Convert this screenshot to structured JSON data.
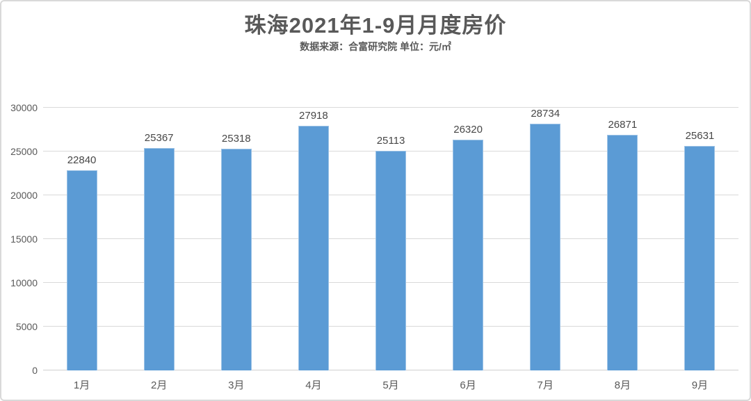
{
  "chart": {
    "title": "珠海2021年1-9月月度房价",
    "subtitle": "数据来源：合富研究院 单位：元/㎡"
  },
  "chart_data": {
    "type": "bar",
    "title": "珠海2021年1-9月月度房价",
    "subtitle": "数据来源：合富研究院 单位：元/㎡",
    "unit": "元/㎡",
    "data_source": "合富研究院",
    "categories": [
      "1月",
      "2月",
      "3月",
      "4月",
      "5月",
      "6月",
      "7月",
      "8月",
      "9月"
    ],
    "values": [
      22840,
      25367,
      25318,
      27918,
      25113,
      26320,
      28734,
      26871,
      25631
    ],
    "xlabel": "",
    "ylabel": "",
    "ylim": [
      0,
      30000
    ],
    "yticks": [
      0,
      5000,
      10000,
      15000,
      20000,
      25000,
      30000
    ],
    "grid": true,
    "legend": "none",
    "data_labels": true
  },
  "colors": {
    "bar_fill": "#5B9BD5",
    "bar_border": "#9DC3E6",
    "grid_line": "#D9D9D9",
    "axis_line": "#D0D0D0",
    "title_text": "#595959",
    "subtitle_text": "#595959",
    "axis_text": "#595959",
    "value_text": "#474747",
    "frame_border": "#D9D9D9",
    "background": "#FFFFFF"
  }
}
